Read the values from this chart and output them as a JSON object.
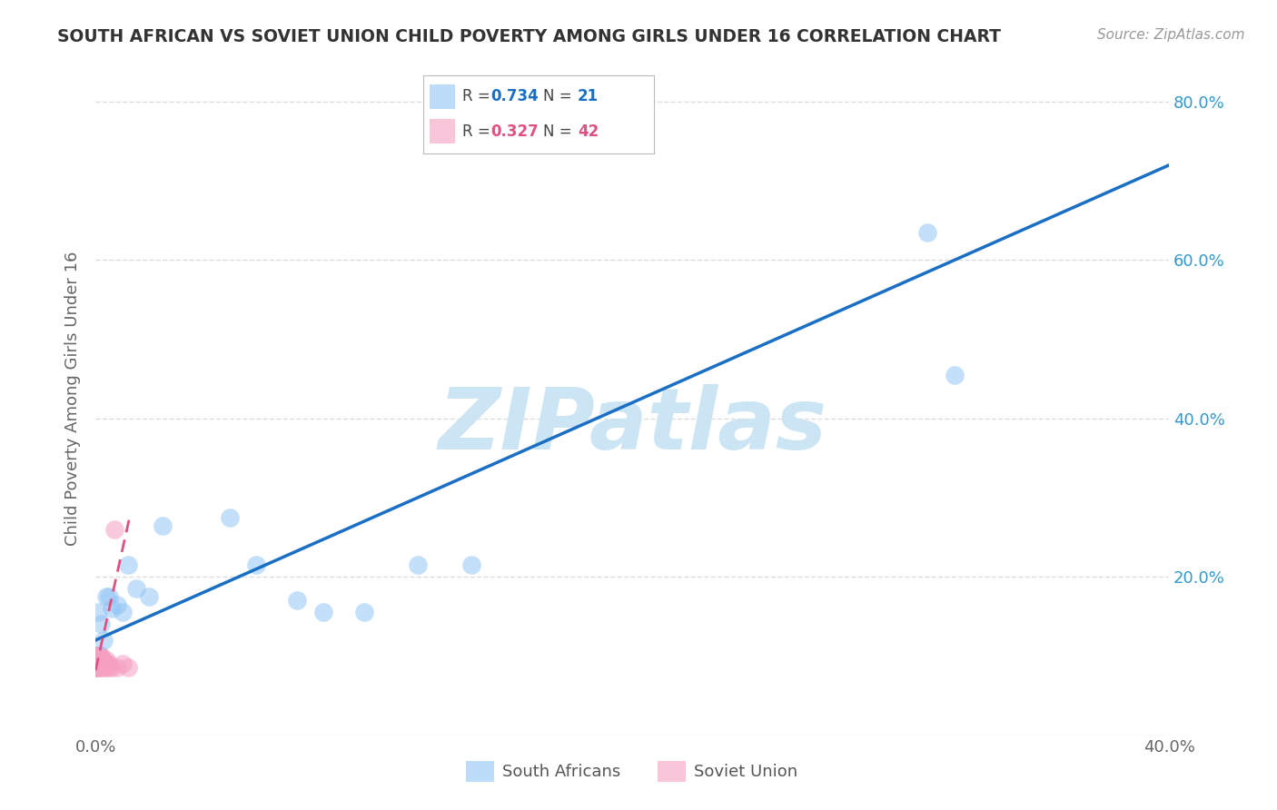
{
  "title": "SOUTH AFRICAN VS SOVIET UNION CHILD POVERTY AMONG GIRLS UNDER 16 CORRELATION CHART",
  "source": "Source: ZipAtlas.com",
  "ylabel": "Child Poverty Among Girls Under 16",
  "xlim": [
    0.0,
    0.4
  ],
  "ylim": [
    0.0,
    0.85
  ],
  "south_african_x": [
    0.001,
    0.002,
    0.003,
    0.004,
    0.005,
    0.006,
    0.008,
    0.01,
    0.012,
    0.015,
    0.02,
    0.025,
    0.05,
    0.06,
    0.075,
    0.085,
    0.1,
    0.12,
    0.14,
    0.31,
    0.32
  ],
  "south_african_y": [
    0.155,
    0.14,
    0.12,
    0.175,
    0.175,
    0.16,
    0.165,
    0.155,
    0.215,
    0.185,
    0.175,
    0.265,
    0.275,
    0.215,
    0.17,
    0.155,
    0.155,
    0.215,
    0.215,
    0.635,
    0.455
  ],
  "soviet_union_x": [
    0.0001,
    0.0001,
    0.0002,
    0.0002,
    0.0003,
    0.0003,
    0.0004,
    0.0004,
    0.0005,
    0.0005,
    0.0006,
    0.0006,
    0.0007,
    0.0007,
    0.0008,
    0.0009,
    0.001,
    0.001,
    0.0012,
    0.0013,
    0.0014,
    0.0015,
    0.0016,
    0.0017,
    0.0018,
    0.002,
    0.002,
    0.0022,
    0.0025,
    0.003,
    0.003,
    0.0032,
    0.0035,
    0.004,
    0.004,
    0.005,
    0.005,
    0.006,
    0.007,
    0.008,
    0.01,
    0.012
  ],
  "soviet_union_y": [
    0.095,
    0.1,
    0.085,
    0.1,
    0.085,
    0.095,
    0.085,
    0.095,
    0.09,
    0.1,
    0.095,
    0.1,
    0.09,
    0.1,
    0.095,
    0.09,
    0.085,
    0.1,
    0.095,
    0.09,
    0.1,
    0.095,
    0.09,
    0.1,
    0.09,
    0.085,
    0.1,
    0.095,
    0.09,
    0.085,
    0.095,
    0.09,
    0.085,
    0.09,
    0.095,
    0.085,
    0.09,
    0.085,
    0.26,
    0.085,
    0.09,
    0.085
  ],
  "south_african_color": "#92c5f5",
  "soviet_union_color": "#f5a0c0",
  "trend_sa_color": "#1a6fc4",
  "trend_su_color": "#e05080",
  "sa_trend_x0": 0.0,
  "sa_trend_y0": 0.12,
  "sa_trend_x1": 0.4,
  "sa_trend_y1": 0.72,
  "su_trend_x0": 0.0,
  "su_trend_y0": 0.082,
  "su_trend_x1": 0.013,
  "su_trend_y1": 0.28,
  "watermark_text": "ZIPatlas",
  "watermark_color": "#cce5f5",
  "background_color": "#ffffff",
  "grid_color": "#dddddd",
  "legend_sa_r": "0.734",
  "legend_sa_n": "21",
  "legend_su_r": "0.327",
  "legend_su_n": "42",
  "legend_r_color_sa": "#1a6fc4",
  "legend_n_color_sa": "#1a6fc4",
  "legend_r_color_su": "#e05080",
  "legend_n_color_su": "#e05080"
}
